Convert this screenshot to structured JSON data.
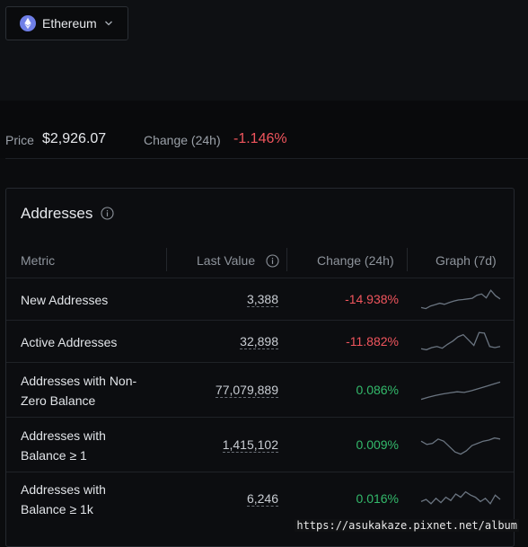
{
  "asset_selector": {
    "label": "Ethereum",
    "icon": "ethereum-icon"
  },
  "price_bar": {
    "price_label": "Price",
    "price_value": "$2,926.07",
    "change_label": "Change (24h)",
    "change_value": "-1.146%"
  },
  "addresses_card": {
    "title": "Addresses",
    "columns": {
      "metric": "Metric",
      "last_value": "Last Value",
      "change": "Change (24h)",
      "graph": "Graph (7d)"
    },
    "rows": [
      {
        "name_lines": [
          "New Addresses"
        ],
        "last_value": "3,388",
        "change": "-14.938%",
        "direction": "neg",
        "spark": [
          0.15,
          0.1,
          0.22,
          0.28,
          0.35,
          0.3,
          0.38,
          0.45,
          0.5,
          0.52,
          0.55,
          0.58,
          0.72,
          0.78,
          0.6,
          0.95,
          0.7,
          0.55
        ]
      },
      {
        "name_lines": [
          "Active Addresses"
        ],
        "last_value": "32,898",
        "change": "-11.882%",
        "direction": "neg",
        "spark": [
          0.2,
          0.15,
          0.25,
          0.3,
          0.22,
          0.4,
          0.55,
          0.75,
          0.85,
          0.6,
          0.35,
          0.95,
          0.92,
          0.3,
          0.25,
          0.3
        ]
      },
      {
        "name_lines": [
          "Addresses with Non-",
          "Zero Balance"
        ],
        "last_value": "77,079,889",
        "change": "0.086%",
        "direction": "pos",
        "spark": [
          0.1,
          0.2,
          0.28,
          0.35,
          0.4,
          0.45,
          0.42,
          0.5,
          0.6,
          0.7,
          0.8,
          0.9
        ]
      },
      {
        "name_lines": [
          "Addresses with",
          "Balance ≥ 1"
        ],
        "last_value": "1,415,102",
        "change": "0.009%",
        "direction": "pos",
        "spark": [
          0.7,
          0.55,
          0.6,
          0.8,
          0.7,
          0.45,
          0.2,
          0.1,
          0.25,
          0.5,
          0.6,
          0.7,
          0.75,
          0.85,
          0.8
        ]
      },
      {
        "name_lines": [
          "Addresses with",
          "Balance ≥ 1k"
        ],
        "last_value": "6,246",
        "change": "0.016%",
        "direction": "pos",
        "spark": [
          0.4,
          0.5,
          0.3,
          0.55,
          0.35,
          0.6,
          0.45,
          0.75,
          0.6,
          0.85,
          0.7,
          0.6,
          0.4,
          0.55,
          0.3,
          0.7,
          0.5
        ]
      }
    ]
  },
  "watermark": "https://asukakaze.pixnet.net/album",
  "colors": {
    "negative": "#f0555d",
    "positive": "#33b96b",
    "sparkline": "#6a7480",
    "ethereum": "#6f7fe8"
  }
}
